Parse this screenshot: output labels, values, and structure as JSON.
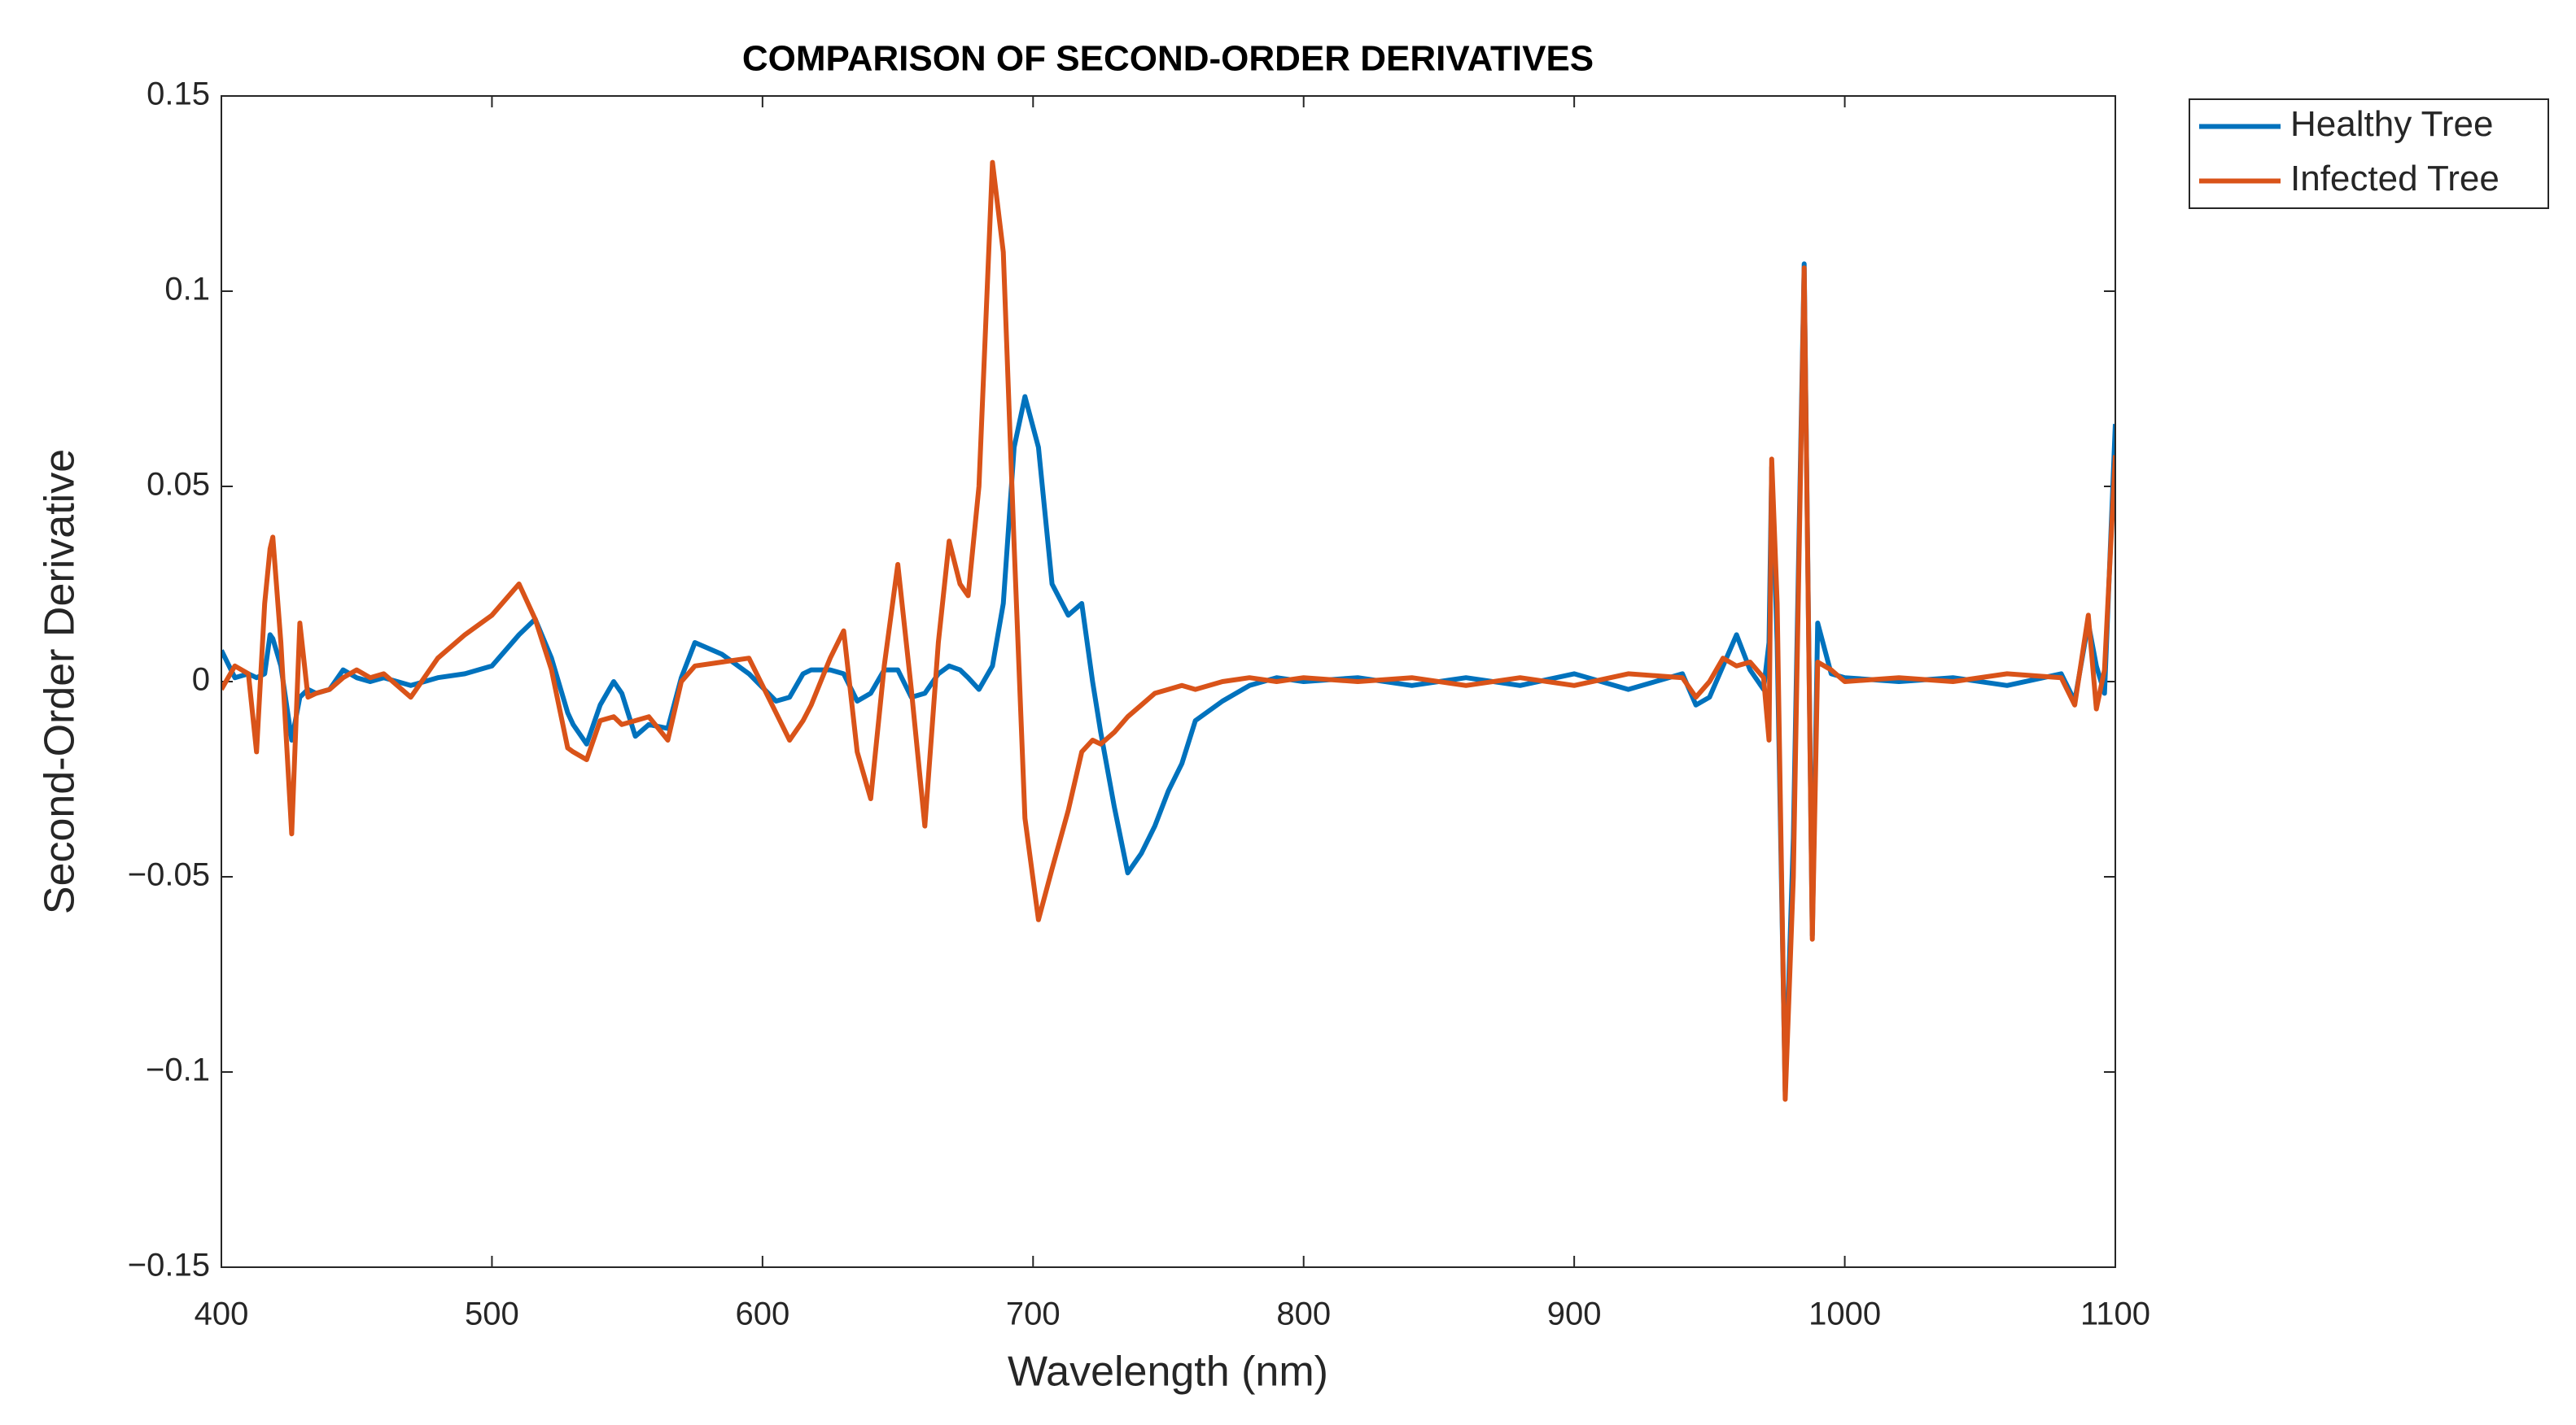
{
  "chart_data": {
    "type": "line",
    "title": "COMPARISON OF SECOND-ORDER DERIVATIVES",
    "x_label": "Wavelength (nm)",
    "y_label": "Second-Order Derivative",
    "x": [
      400,
      405,
      410,
      413,
      416,
      418,
      419,
      422,
      426,
      429,
      432,
      435,
      440,
      445,
      450,
      455,
      460,
      470,
      480,
      490,
      500,
      510,
      516,
      522,
      528,
      530,
      535,
      540,
      545,
      548,
      553,
      558,
      565,
      570,
      575,
      585,
      595,
      605,
      610,
      615,
      618,
      625,
      630,
      635,
      640,
      645,
      650,
      655,
      660,
      665,
      669,
      673,
      676,
      680,
      685,
      689,
      693,
      697,
      702,
      707,
      713,
      718,
      722,
      725,
      730,
      735,
      740,
      745,
      750,
      755,
      760,
      770,
      780,
      790,
      800,
      820,
      840,
      860,
      880,
      900,
      920,
      940,
      945,
      950,
      955,
      960,
      965,
      970,
      972,
      973,
      975,
      978,
      981,
      985,
      988,
      990,
      995,
      1000,
      1020,
      1040,
      1060,
      1080,
      1085,
      1090,
      1093,
      1096,
      1100
    ],
    "series": [
      {
        "name": "Healthy Tree",
        "color": "#0072BD",
        "values": [
          0.008,
          0.001,
          0.002,
          0.001,
          0.002,
          0.012,
          0.011,
          0.004,
          -0.015,
          -0.004,
          -0.002,
          -0.003,
          -0.002,
          0.003,
          0.001,
          0,
          0.001,
          -0.001,
          0.001,
          0.002,
          0.004,
          0.012,
          0.016,
          0.006,
          -0.008,
          -0.011,
          -0.016,
          -0.006,
          0,
          -0.003,
          -0.014,
          -0.011,
          -0.012,
          0.001,
          0.01,
          0.007,
          0.002,
          -0.005,
          -0.004,
          0.002,
          0.003,
          0.003,
          0.002,
          -0.005,
          -0.003,
          0.003,
          0.003,
          -0.004,
          -0.003,
          0.002,
          0.004,
          0.003,
          0.001,
          -0.002,
          0.004,
          0.02,
          0.06,
          0.073,
          0.06,
          0.025,
          0.017,
          0.02,
          0,
          -0.013,
          -0.032,
          -0.049,
          -0.044,
          -0.037,
          -0.028,
          -0.021,
          -0.01,
          -0.005,
          -0.001,
          0.001,
          0,
          0.001,
          -0.001,
          0.001,
          -0.001,
          0.002,
          -0.002,
          0.002,
          -0.006,
          -0.004,
          0.004,
          0.012,
          0.003,
          -0.002,
          0.01,
          0.055,
          0.01,
          -0.105,
          -0.04,
          0.107,
          -0.065,
          0.015,
          0.002,
          0.001,
          0,
          0.001,
          -0.001,
          0.002,
          -0.005,
          0.015,
          0.004,
          -0.003,
          0.066
        ]
      },
      {
        "name": "Infected Tree",
        "color": "#D95319",
        "values": [
          -0.002,
          0.004,
          0.002,
          -0.018,
          0.02,
          0.034,
          0.037,
          0.01,
          -0.039,
          0.015,
          -0.004,
          -0.003,
          -0.002,
          0.001,
          0.003,
          0.001,
          0.002,
          -0.004,
          0.006,
          0.012,
          0.017,
          0.025,
          0.016,
          0.003,
          -0.017,
          -0.018,
          -0.02,
          -0.01,
          -0.009,
          -0.011,
          -0.01,
          -0.009,
          -0.015,
          0,
          0.004,
          0.005,
          0.006,
          -0.008,
          -0.015,
          -0.01,
          -0.006,
          0.006,
          0.013,
          -0.018,
          -0.03,
          0.004,
          0.03,
          -0.002,
          -0.037,
          0.01,
          0.036,
          0.025,
          0.022,
          0.05,
          0.133,
          0.11,
          0.035,
          -0.035,
          -0.061,
          -0.048,
          -0.033,
          -0.018,
          -0.015,
          -0.016,
          -0.013,
          -0.009,
          -0.006,
          -0.003,
          -0.002,
          -0.001,
          -0.002,
          0,
          0.001,
          0,
          0.001,
          0,
          0.001,
          -0.001,
          0.001,
          -0.001,
          0.002,
          0.001,
          -0.004,
          0,
          0.006,
          0.004,
          0.005,
          0.001,
          -0.015,
          0.057,
          0.02,
          -0.107,
          -0.05,
          0.106,
          -0.066,
          0.005,
          0.003,
          0,
          0.001,
          0,
          0.002,
          0.001,
          -0.006,
          0.017,
          -0.007,
          0.003,
          0.058
        ]
      }
    ],
    "xlim": [
      400,
      1100
    ],
    "xticks": [
      400,
      500,
      600,
      700,
      800,
      900,
      1000,
      1100
    ],
    "ylim": [
      -0.15,
      0.15
    ],
    "yticks": [
      {
        "value": -0.15,
        "label": "−0.15"
      },
      {
        "value": -0.1,
        "label": "−0.1"
      },
      {
        "value": -0.05,
        "label": "−0.05"
      },
      0,
      0.05,
      0.1,
      0.15
    ],
    "grid": false,
    "legend": "outside-right"
  }
}
